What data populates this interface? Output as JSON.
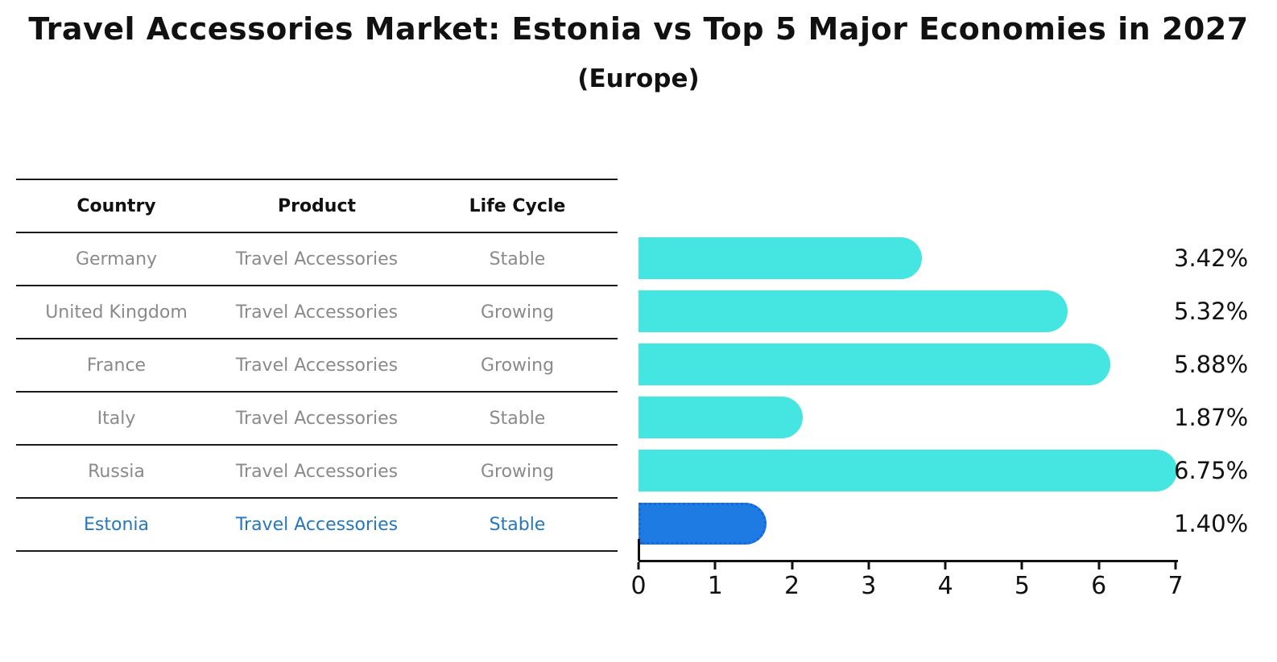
{
  "title": "Travel Accessories Market: Estonia vs Top 5 Major Economies in 2027",
  "subtitle": "(Europe)",
  "table": {
    "headers": [
      "Country",
      "Product",
      "Life Cycle"
    ],
    "rows": [
      {
        "country": "Germany",
        "product": "Travel Accessories",
        "life_cycle": "Stable",
        "highlight": false
      },
      {
        "country": "United Kingdom",
        "product": "Travel Accessories",
        "life_cycle": "Growing",
        "highlight": false
      },
      {
        "country": "France",
        "product": "Travel Accessories",
        "life_cycle": "Growing",
        "highlight": false
      },
      {
        "country": "Italy",
        "product": "Travel Accessories",
        "life_cycle": "Stable",
        "highlight": false
      },
      {
        "country": "Russia",
        "product": "Travel Accessories",
        "life_cycle": "Growing",
        "highlight": false
      },
      {
        "country": "Estonia",
        "product": "Travel Accessories",
        "life_cycle": "Stable",
        "highlight": true
      }
    ]
  },
  "chart_data": {
    "type": "bar",
    "orientation": "horizontal",
    "title": "Travel Accessories Market: Estonia vs Top 5 Major Economies in 2027",
    "subtitle": "(Europe)",
    "categories": [
      "Germany",
      "United Kingdom",
      "France",
      "Italy",
      "Russia",
      "Estonia"
    ],
    "values": [
      3.42,
      5.32,
      5.88,
      1.87,
      6.75,
      1.4
    ],
    "value_labels": [
      "3.42%",
      "5.32%",
      "5.88%",
      "1.87%",
      "6.75%",
      "1.40%"
    ],
    "xlim": [
      0,
      7
    ],
    "xticks": [
      "0",
      "1",
      "2",
      "3",
      "4",
      "5",
      "6",
      "7"
    ],
    "grid": false,
    "legend": false,
    "bar_color": "#45e5e1",
    "highlight": {
      "index": 5,
      "category": "Estonia",
      "color": "#1e7be4",
      "border_style": "dotted"
    }
  },
  "colors": {
    "background": "#ffffff",
    "bar_cyan": "#45e5e1",
    "bar_blue": "#1e7be4",
    "bar_blue_border": "#1467dc",
    "highlight_text": "#2577be",
    "muted_text": "#8a8a8a",
    "text": "#111111"
  }
}
